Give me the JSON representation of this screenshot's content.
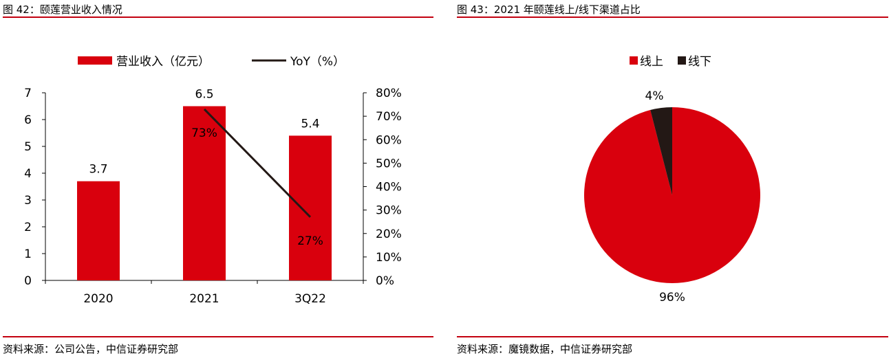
{
  "colors": {
    "red": "#d9000d",
    "dark": "#231815",
    "rule": "#c3000f",
    "line": "#231815"
  },
  "left": {
    "title": "图 42：颐莲营业收入情况",
    "source": "资料来源：公司公告，中信证券研究部"
  },
  "right": {
    "title": "图 43：2021 年颐莲线上/线下渠道占比",
    "source": "资料来源：魔镜数据，中信证券研究部"
  },
  "chart_data": [
    {
      "type": "bar",
      "categories": [
        "2020",
        "2021",
        "3Q22"
      ],
      "series": [
        {
          "name": "营业收入（亿元）",
          "type": "bar",
          "axis": "left",
          "values": [
            3.7,
            6.5,
            5.4
          ],
          "labels": [
            "3.7",
            "6.5",
            "5.4"
          ]
        },
        {
          "name": "YoY（%）",
          "type": "line",
          "axis": "right",
          "values": [
            null,
            73,
            27
          ],
          "labels": [
            "",
            "73%",
            "27%"
          ]
        }
      ],
      "ylim": [
        0,
        7
      ],
      "y_ticks": [
        "0",
        "1",
        "2",
        "3",
        "4",
        "5",
        "6",
        "7"
      ],
      "y2lim": [
        0,
        80
      ],
      "y2_ticks": [
        "0%",
        "10%",
        "20%",
        "30%",
        "40%",
        "50%",
        "60%",
        "70%",
        "80%"
      ],
      "legend": "top",
      "grid": false
    },
    {
      "type": "pie",
      "categories": [
        "线上",
        "线下"
      ],
      "values": [
        96,
        4
      ],
      "labels": [
        "96%",
        "4%"
      ],
      "legend": "top",
      "colors": [
        "#d9000d",
        "#231815"
      ]
    }
  ]
}
